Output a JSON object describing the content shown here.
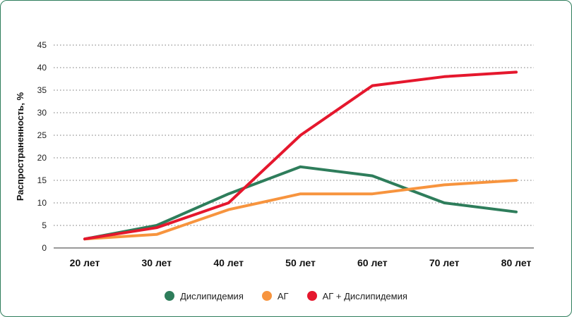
{
  "chart_data": {
    "type": "line",
    "ylabel": "Распространенность, %",
    "xlabel": "",
    "categories": [
      "20 лет",
      "30 лет",
      "40 лет",
      "50 лет",
      "60 лет",
      "70 лет",
      "80 лет"
    ],
    "yticks": [
      "0",
      "5",
      "10",
      "15",
      "20",
      "25",
      "30",
      "35",
      "40",
      "45"
    ],
    "ylim": [
      0,
      45
    ],
    "grid": true,
    "legend_position": "bottom-center",
    "series": [
      {
        "name": "Дислипидемия",
        "color": "#2e7d5b",
        "values": [
          2,
          5,
          12,
          18,
          16,
          10,
          8
        ]
      },
      {
        "name": "АГ",
        "color": "#f7943e",
        "values": [
          2,
          3,
          8.5,
          12,
          12,
          14,
          15
        ]
      },
      {
        "name": "АГ + Дислипидемия",
        "color": "#e5172d",
        "values": [
          2,
          4.5,
          10,
          25,
          36,
          38,
          39
        ]
      }
    ]
  }
}
